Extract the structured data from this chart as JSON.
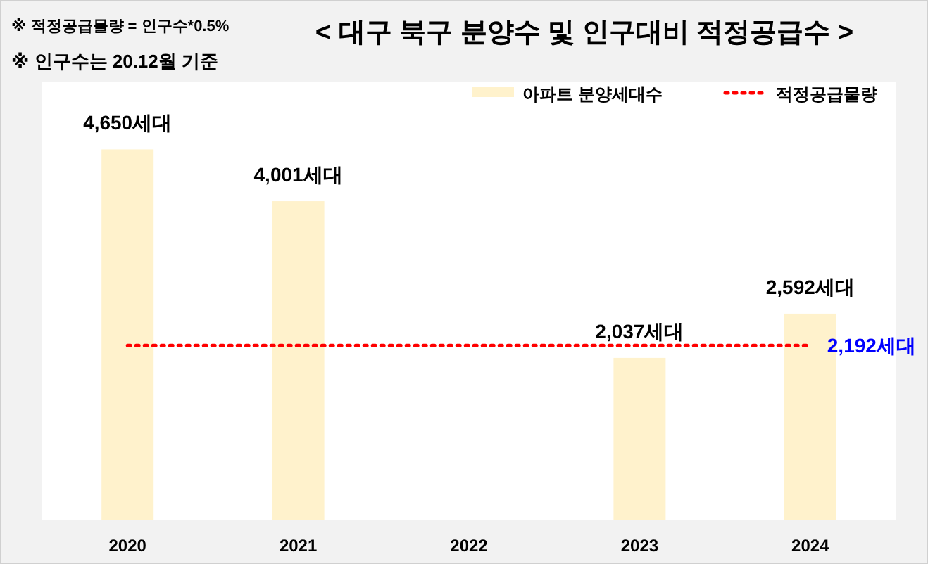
{
  "chart_data": {
    "type": "bar",
    "title": "< 대구 북구 분양수 및 인구대비 적정공급수 >",
    "annotations": [
      "※ 적정공급물량 = 인구수*0.5%",
      "※ 인구수는 20.12월 기준"
    ],
    "categories": [
      "2020",
      "2021",
      "2022",
      "2023",
      "2024"
    ],
    "series": [
      {
        "name": "아파트 분양세대수",
        "color": "#fff2cc",
        "values": [
          4650,
          4001,
          null,
          2037,
          2592
        ],
        "value_labels": [
          "4,650세대",
          "4,001세대",
          null,
          "2,037세대",
          "2,592세대"
        ]
      },
      {
        "name": "적정공급물량",
        "type": "line",
        "color": "#ff0000",
        "line_style": "dotted",
        "values": [
          2192,
          2192,
          2192,
          2192,
          2192
        ],
        "value_labels": [
          null,
          null,
          null,
          null,
          "2,192세대"
        ]
      }
    ],
    "ylim": [
      0,
      5500
    ],
    "tick_labels": "x",
    "legend": "top right",
    "grid": false
  }
}
